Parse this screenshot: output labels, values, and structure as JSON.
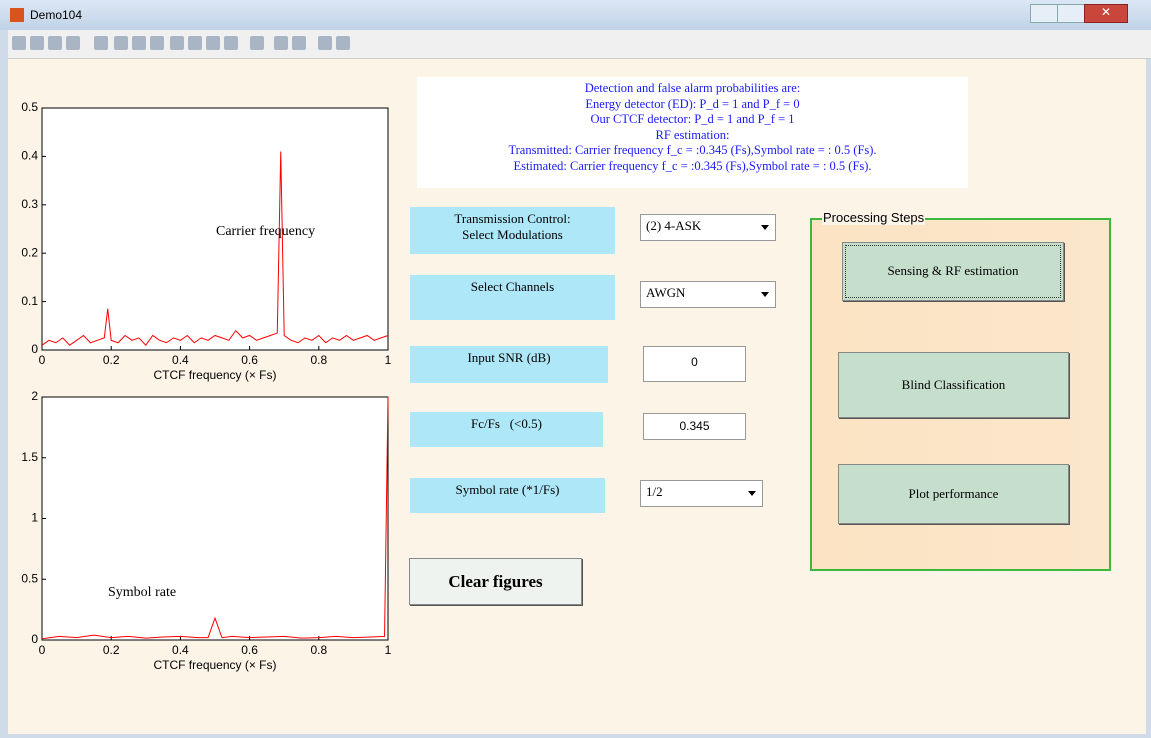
{
  "window": {
    "title": "Demo104"
  },
  "info": {
    "lines": [
      "Detection and false alarm probabilities are:",
      "Energy detector (ED):  P_d = 1 and P_f = 0",
      "Our CTCF detector:    P_d = 1 and P_f = 1",
      "RF estimation:",
      "Transmitted: Carrier frequency f_c = :0.345 (Fs),Symbol rate = : 0.5 (Fs).",
      "Estimated:   Carrier frequency f_c = :0.345 (Fs),Symbol rate = : 0.5 (Fs)."
    ]
  },
  "controls": {
    "modulation": {
      "label": [
        "Transmission Control:",
        "Select Modulations"
      ],
      "value": "(2) 4-ASK"
    },
    "channel": {
      "label": "Select Channels",
      "value": "AWGN"
    },
    "snr": {
      "label": "Input SNR (dB)",
      "value": "0"
    },
    "fc": {
      "label": "Fc/Fs   (<0.5)",
      "value": "0.345"
    },
    "symbol": {
      "label": "Symbol rate (*1/Fs)",
      "value": "1/2"
    },
    "clear": "Clear figures"
  },
  "panel": {
    "title": "Processing Steps",
    "buttons": [
      "Sensing &  RF estimation",
      "Blind Classification",
      "Plot performance"
    ]
  },
  "chart_data": [
    {
      "type": "line",
      "xlabel": "CTCF frequency (× Fs)",
      "annotation": "Carrier frequency",
      "x": [
        0,
        0.02,
        0.04,
        0.06,
        0.08,
        0.1,
        0.12,
        0.14,
        0.16,
        0.18,
        0.19,
        0.2,
        0.22,
        0.24,
        0.26,
        0.28,
        0.3,
        0.32,
        0.34,
        0.36,
        0.38,
        0.4,
        0.42,
        0.44,
        0.46,
        0.48,
        0.5,
        0.52,
        0.54,
        0.56,
        0.58,
        0.6,
        0.62,
        0.64,
        0.66,
        0.68,
        0.69,
        0.7,
        0.72,
        0.74,
        0.76,
        0.78,
        0.8,
        0.82,
        0.84,
        0.86,
        0.88,
        0.9,
        0.92,
        0.94,
        0.96,
        0.98,
        1
      ],
      "series": [
        {
          "color": "#ff0000",
          "values": [
            0.01,
            0.02,
            0.015,
            0.025,
            0.01,
            0.02,
            0.03,
            0.015,
            0.02,
            0.025,
            0.085,
            0.02,
            0.015,
            0.03,
            0.02,
            0.025,
            0.01,
            0.03,
            0.02,
            0.015,
            0.025,
            0.02,
            0.03,
            0.015,
            0.025,
            0.02,
            0.03,
            0.025,
            0.02,
            0.04,
            0.025,
            0.03,
            0.02,
            0.025,
            0.03,
            0.035,
            0.41,
            0.03,
            0.02,
            0.015,
            0.025,
            0.02,
            0.03,
            0.015,
            0.025,
            0.02,
            0.03,
            0.02,
            0.025,
            0.03,
            0.02,
            0.025,
            0.03
          ]
        }
      ],
      "xlim": [
        0,
        1
      ],
      "ylim": [
        0,
        0.5
      ],
      "xticks": [
        0,
        0.2,
        0.4,
        0.6,
        0.8,
        1
      ],
      "yticks": [
        0,
        0.1,
        0.2,
        0.3,
        0.4,
        0.5
      ]
    },
    {
      "type": "line",
      "xlabel": "CTCF frequency (× Fs)",
      "annotation": "Symbol rate",
      "x": [
        0,
        0.05,
        0.1,
        0.15,
        0.2,
        0.25,
        0.3,
        0.35,
        0.4,
        0.45,
        0.48,
        0.5,
        0.52,
        0.55,
        0.6,
        0.65,
        0.7,
        0.75,
        0.8,
        0.85,
        0.9,
        0.95,
        0.99,
        1
      ],
      "series": [
        {
          "color": "#ff0000",
          "values": [
            0.01,
            0.03,
            0.02,
            0.04,
            0.02,
            0.03,
            0.015,
            0.025,
            0.03,
            0.02,
            0.02,
            0.18,
            0.02,
            0.03,
            0.02,
            0.025,
            0.03,
            0.015,
            0.02,
            0.03,
            0.02,
            0.025,
            0.03,
            2
          ]
        }
      ],
      "xlim": [
        0,
        1
      ],
      "ylim": [
        0,
        2
      ],
      "xticks": [
        0,
        0.2,
        0.4,
        0.6,
        0.8,
        1
      ],
      "yticks": [
        0,
        0.5,
        1,
        1.5,
        2
      ]
    }
  ]
}
